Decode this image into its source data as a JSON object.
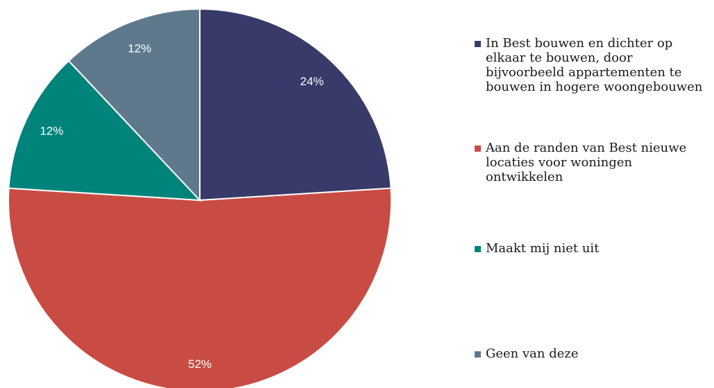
{
  "chart_data": {
    "type": "pie",
    "title": "",
    "categories": [
      "In Best bouwen en dichter op elkaar te bouwen, door bijvoorbeeld appartementen te bouwen in hogere woongebouwen",
      "Aan de randen van Best nieuwe locaties voor woningen ontwikkelen",
      "Maakt mij niet uit",
      "Geen van deze"
    ],
    "values": [
      24,
      52,
      12,
      12
    ],
    "labels": [
      "24%",
      "52%",
      "12%",
      "12%"
    ],
    "colors": [
      "#383a69",
      "#c94c44",
      "#00837a",
      "#5f798c"
    ],
    "legend_position": "right"
  }
}
